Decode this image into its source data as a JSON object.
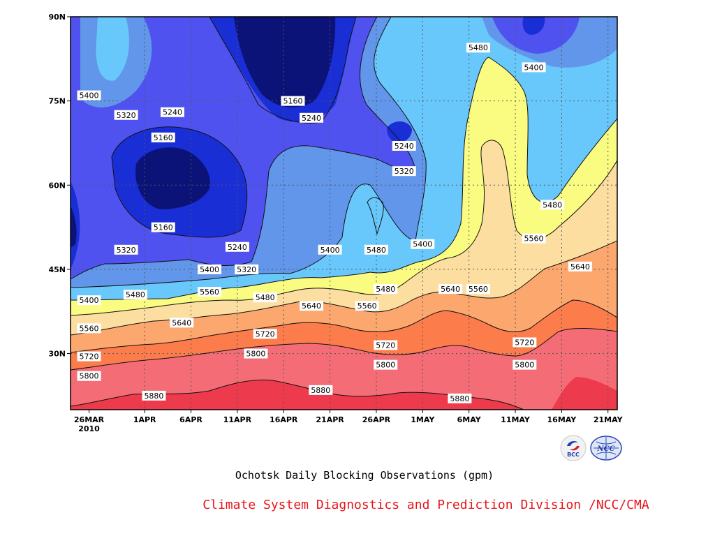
{
  "colors": {
    "levels": [
      "#0c1378",
      "#1a2ed6",
      "#4f52ef",
      "#6196ea",
      "#69c8fb",
      "#fafb81",
      "#fcdfa0",
      "#fca76e",
      "#fc7c4c",
      "#f46d76",
      "#ee3a4d"
    ],
    "credit": "#e8141a"
  },
  "chart_data": {
    "type": "heatmap",
    "title": "Ochotsk Daily Blocking Observations (gpm)",
    "subtitle": "",
    "xlabel": "",
    "ylabel": "",
    "x_tick_labels": [
      "26MAR",
      "1APR",
      "6APR",
      "11APR",
      "16APR",
      "21APR",
      "26APR",
      "1MAY",
      "6MAY",
      "11MAY",
      "16MAY",
      "21MAY"
    ],
    "x_year_label": "2010",
    "x_range": [
      "2010-03-24",
      "2010-05-22"
    ],
    "y_tick_labels": [
      "90N",
      "75N",
      "60N",
      "45N",
      "30N"
    ],
    "y_range": [
      20,
      90
    ],
    "contour_levels": [
      5160,
      5240,
      5320,
      5400,
      5480,
      5560,
      5640,
      5720,
      5800,
      5880
    ],
    "contour_labels": [
      {
        "text": "5400",
        "date": "2010-03-26",
        "lat": 76.0
      },
      {
        "text": "5320",
        "date": "2010-03-30",
        "lat": 72.5
      },
      {
        "text": "5240",
        "date": "2010-04-04",
        "lat": 73.0
      },
      {
        "text": "5160",
        "date": "2010-04-03",
        "lat": 68.5
      },
      {
        "text": "5160",
        "date": "2010-04-03",
        "lat": 52.5
      },
      {
        "text": "5320",
        "date": "2010-03-30",
        "lat": 48.5
      },
      {
        "text": "5240",
        "date": "2010-04-11",
        "lat": 49.0
      },
      {
        "text": "5400",
        "date": "2010-04-08",
        "lat": 45.0
      },
      {
        "text": "5320",
        "date": "2010-04-12",
        "lat": 45.0
      },
      {
        "text": "5400",
        "date": "2010-03-26",
        "lat": 39.5
      },
      {
        "text": "5480",
        "date": "2010-03-31",
        "lat": 40.5
      },
      {
        "text": "5560",
        "date": "2010-04-08",
        "lat": 41.0
      },
      {
        "text": "5480",
        "date": "2010-04-14",
        "lat": 40.0
      },
      {
        "text": "5560",
        "date": "2010-03-26",
        "lat": 34.5
      },
      {
        "text": "5640",
        "date": "2010-04-05",
        "lat": 35.5
      },
      {
        "text": "5640",
        "date": "2010-04-19",
        "lat": 38.5
      },
      {
        "text": "5560",
        "date": "2010-04-25",
        "lat": 38.5
      },
      {
        "text": "5480",
        "date": "2010-04-27",
        "lat": 41.5
      },
      {
        "text": "5720",
        "date": "2010-03-26",
        "lat": 29.5
      },
      {
        "text": "5720",
        "date": "2010-04-14",
        "lat": 33.5
      },
      {
        "text": "5720",
        "date": "2010-04-27",
        "lat": 31.5
      },
      {
        "text": "5800",
        "date": "2010-03-26",
        "lat": 26.0
      },
      {
        "text": "5800",
        "date": "2010-04-13",
        "lat": 30.0
      },
      {
        "text": "5800",
        "date": "2010-04-27",
        "lat": 28.0
      },
      {
        "text": "5880",
        "date": "2010-04-02",
        "lat": 22.5
      },
      {
        "text": "5880",
        "date": "2010-04-20",
        "lat": 23.5
      },
      {
        "text": "5880",
        "date": "2010-05-05",
        "lat": 22.0
      },
      {
        "text": "5160",
        "date": "2010-04-17",
        "lat": 75.0
      },
      {
        "text": "5240",
        "date": "2010-04-19",
        "lat": 72.0
      },
      {
        "text": "5240",
        "date": "2010-04-29",
        "lat": 67.0
      },
      {
        "text": "5320",
        "date": "2010-04-29",
        "lat": 62.5
      },
      {
        "text": "5400",
        "date": "2010-04-21",
        "lat": 48.5
      },
      {
        "text": "5480",
        "date": "2010-04-26",
        "lat": 48.5
      },
      {
        "text": "5400",
        "date": "2010-05-01",
        "lat": 49.5
      },
      {
        "text": "5480",
        "date": "2010-05-07",
        "lat": 84.5
      },
      {
        "text": "5400",
        "date": "2010-05-13",
        "lat": 81.0
      },
      {
        "text": "5480",
        "date": "2010-05-15",
        "lat": 56.5
      },
      {
        "text": "5560",
        "date": "2010-05-13",
        "lat": 50.5
      },
      {
        "text": "5640",
        "date": "2010-05-18",
        "lat": 45.5
      },
      {
        "text": "5640",
        "date": "2010-05-04",
        "lat": 41.5
      },
      {
        "text": "5560",
        "date": "2010-05-07",
        "lat": 41.5
      },
      {
        "text": "5720",
        "date": "2010-05-12",
        "lat": 32.0
      },
      {
        "text": "5800",
        "date": "2010-05-12",
        "lat": 28.0
      }
    ]
  },
  "logos": {
    "bcc_text": "BCC",
    "ncc_text": "NCC"
  },
  "footer": {
    "credit": "Climate System Diagnostics and Prediction Division /NCC/CMA"
  }
}
